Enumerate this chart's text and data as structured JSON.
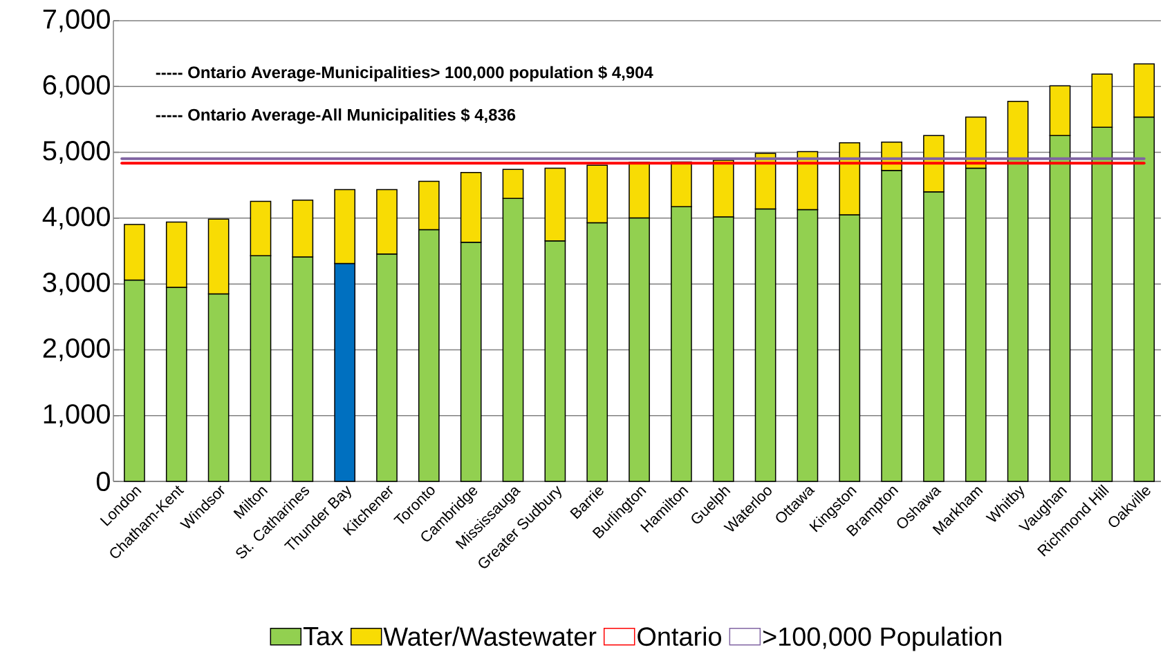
{
  "chart_data": {
    "type": "bar",
    "stacked": true,
    "categories": [
      "London",
      "Chatham-Kent",
      "Windsor",
      "Milton",
      "St. Catharines",
      "Thunder Bay",
      "Kitchener",
      "Toronto",
      "Cambridge",
      "Mississauga",
      "Greater Sudbury",
      "Barrie",
      "Burlington",
      "Hamilton",
      "Guelph",
      "Waterloo",
      "Ottawa",
      "Kingston",
      "Brampton",
      "Oshawa",
      "Markham",
      "Whitby",
      "Vaughan",
      "Richmond Hill",
      "Oakville"
    ],
    "series": [
      {
        "name": "Tax",
        "color": "#92d050",
        "colors": [
          "#92d050",
          "#92d050",
          "#92d050",
          "#92d050",
          "#92d050",
          "#0070c0",
          "#92d050",
          "#92d050",
          "#92d050",
          "#92d050",
          "#92d050",
          "#92d050",
          "#92d050",
          "#92d050",
          "#92d050",
          "#92d050",
          "#92d050",
          "#92d050",
          "#92d050",
          "#92d050",
          "#92d050",
          "#92d050",
          "#92d050",
          "#92d050",
          "#92d050"
        ],
        "values": [
          3060,
          2950,
          2850,
          3430,
          3410,
          3310,
          3455,
          3825,
          3635,
          4300,
          3655,
          3930,
          4005,
          4175,
          4020,
          4140,
          4130,
          4050,
          4725,
          4400,
          4760,
          4900,
          5255,
          5380,
          5535
        ]
      },
      {
        "name": "Water/Wastewater",
        "color": "#f8dc04",
        "values": [
          845,
          990,
          1135,
          825,
          865,
          1125,
          980,
          735,
          1060,
          440,
          1105,
          875,
          845,
          680,
          860,
          845,
          880,
          1095,
          430,
          855,
          775,
          875,
          755,
          810,
          810
        ]
      }
    ],
    "ref_lines": [
      {
        "axis": "y",
        "value": 4836,
        "label": "Ontario",
        "color": "#ff0000"
      },
      {
        "axis": "y",
        "value": 4904,
        "label": ">100,000 Population",
        "color": "#8064a2"
      }
    ],
    "annotations": [
      "----- Ontario Average-Municipalities> 100,000 population $ 4,904",
      "----- Ontario Average-All Municipalities $ 4,836"
    ],
    "ylim": [
      0,
      7000
    ],
    "yticks": [
      {
        "value": 0,
        "label": "0"
      },
      {
        "value": 1000,
        "label": "1,000"
      },
      {
        "value": 2000,
        "label": "2,000"
      },
      {
        "value": 3000,
        "label": "3,000"
      },
      {
        "value": 4000,
        "label": "4,000"
      },
      {
        "value": 5000,
        "label": "5,000"
      },
      {
        "value": 6000,
        "label": "6,000"
      },
      {
        "value": 7000,
        "label": "7,000"
      }
    ],
    "grid": "y",
    "legend": "bottom"
  }
}
